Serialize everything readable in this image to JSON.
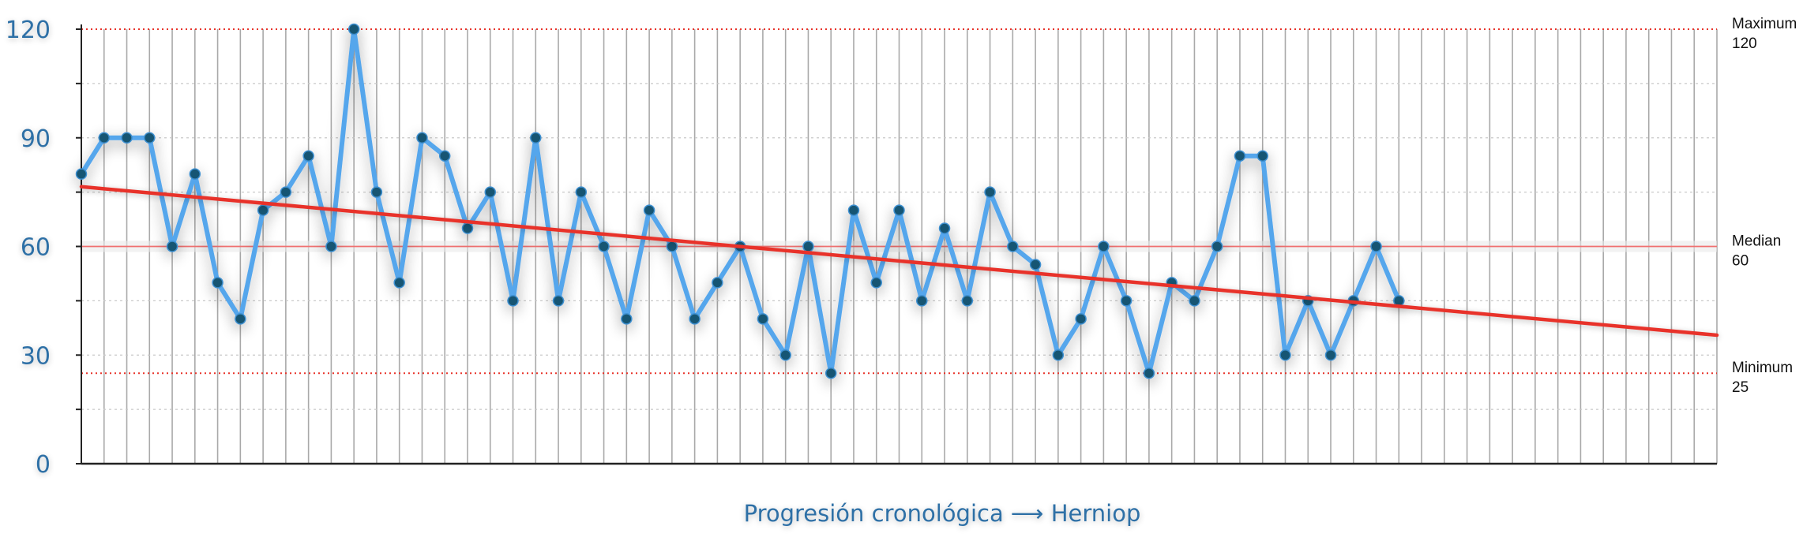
{
  "chart_data": {
    "type": "line",
    "title": "",
    "xlabel": "Progresión cronológica ⟶ Herniop",
    "ylabel": "",
    "ylim": [
      0,
      120
    ],
    "yticks": [
      0,
      30,
      60,
      90,
      120
    ],
    "x_slots": 72,
    "grid": "vertical lines per point, dotted horizontal gridlines",
    "series": [
      {
        "values": [
          80,
          90,
          90,
          90,
          60,
          80,
          50,
          40,
          70,
          75,
          85,
          60,
          120,
          75,
          50,
          90,
          85,
          65,
          75,
          45,
          90,
          45,
          75,
          60,
          40,
          70,
          60,
          40,
          50,
          60,
          40,
          30,
          60,
          25,
          70,
          50,
          70,
          45,
          65,
          45,
          75,
          60,
          55,
          30,
          40,
          60,
          45,
          25,
          50,
          45,
          60,
          85,
          85,
          30,
          45,
          30,
          45,
          60,
          45
        ],
        "color": "#55a6ec"
      }
    ],
    "trend_line": {
      "start": 76.5,
      "end": 35.5,
      "color": "#e8332a"
    },
    "reference_lines": [
      {
        "label": "Maximum",
        "value": 120,
        "value_text": "120",
        "style": "dotted",
        "color": "#e8332a"
      },
      {
        "label": "Median",
        "value": 60,
        "value_text": "60",
        "style": "solid",
        "color": "#f07070"
      },
      {
        "label": "Minimum",
        "value": 25,
        "value_text": "25",
        "style": "dotted",
        "color": "#e8332a"
      }
    ],
    "colors": {
      "line": "#55a6ec",
      "marker": "#175573",
      "axis_text": "#2e6fa6",
      "trend": "#e8332a"
    }
  }
}
